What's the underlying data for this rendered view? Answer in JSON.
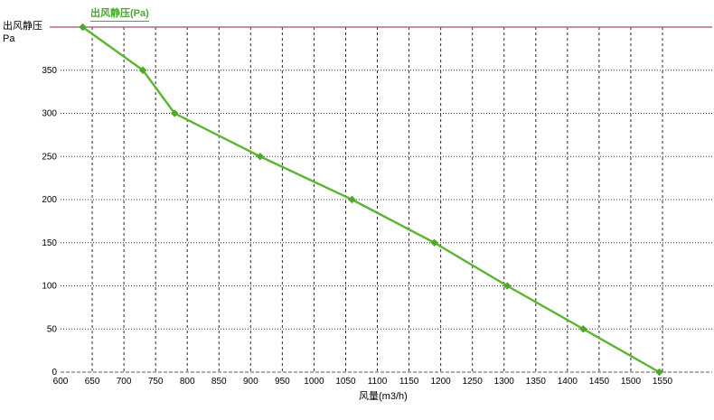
{
  "axis_titles": {
    "y_line1": "出风静压",
    "y_line2": "Pa",
    "x_title": "风量(m3/h)"
  },
  "legend": {
    "label": "出风静压(Pa)"
  },
  "colors": {
    "line": "#5cb531",
    "marker": "#4ea82c",
    "legend_text": "#3fae28",
    "top_border": "#b06c8c",
    "bottom_axis": "#a2889a",
    "grid": "#2a2a2a",
    "text": "#000000",
    "background": "#ffffff"
  },
  "chart_data": {
    "type": "line",
    "title": "",
    "xlabel": "风量(m3/h)",
    "ylabel": "出风静压 (Pa)",
    "legend_entries": [
      "出风静压(Pa)"
    ],
    "legend_position": "top-left",
    "grid": true,
    "xlim": [
      600,
      1578
    ],
    "ylim": [
      0,
      400
    ],
    "x_ticks": [
      600,
      650,
      700,
      750,
      800,
      850,
      900,
      950,
      1000,
      1050,
      1100,
      1150,
      1200,
      1250,
      1300,
      1350,
      1400,
      1450,
      1500,
      1550
    ],
    "y_ticks": [
      0,
      50,
      100,
      150,
      200,
      250,
      300,
      350
    ],
    "series": [
      {
        "name": "出风静压(Pa)",
        "x": [
          635,
          730,
          780,
          915,
          1060,
          1190,
          1305,
          1425,
          1545
        ],
        "y": [
          400,
          350,
          300,
          250,
          200,
          150,
          100,
          50,
          0
        ]
      }
    ]
  }
}
